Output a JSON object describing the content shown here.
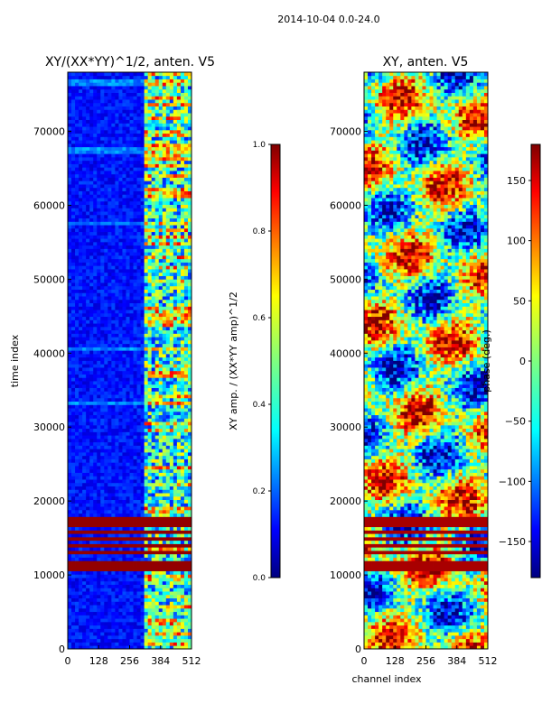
{
  "figure": {
    "suptitle": "2014-10-04 0.0-24.0"
  },
  "colors": {
    "jet": [
      "#00007f",
      "#0000ff",
      "#007fff",
      "#00ffff",
      "#7fff7f",
      "#ffff00",
      "#ff7f00",
      "#ff0000",
      "#7f0000"
    ],
    "background": "#ffffff",
    "axis": "#000000"
  },
  "chart_data": [
    {
      "type": "heatmap",
      "title": "XY/(XX*YY)^1/2, anten. V5",
      "xlabel": "",
      "ylabel": "time index",
      "xlim": [
        0,
        512
      ],
      "ylim": [
        0,
        78000
      ],
      "xticks": [
        0,
        128,
        256,
        384,
        512
      ],
      "yticks": [
        0,
        10000,
        20000,
        30000,
        40000,
        50000,
        60000,
        70000
      ],
      "colorbar": {
        "label": "XY amp. / (XX*YY amp)^1/2",
        "range": [
          0.0,
          1.0
        ],
        "ticks": [
          "0.0",
          "0.2",
          "0.4",
          "0.6",
          "0.8",
          "1.0"
        ]
      },
      "high_bands_time": [
        [
          10500,
          11800
        ],
        [
          12800,
          13200
        ],
        [
          13600,
          14100
        ],
        [
          14600,
          15000
        ],
        [
          15400,
          15900
        ],
        [
          16400,
          16800
        ],
        [
          17200,
          17700
        ]
      ],
      "active_channels": [
        320,
        512
      ]
    },
    {
      "type": "heatmap",
      "title": "XY, anten. V5",
      "xlabel": "channel index",
      "ylabel": "",
      "xlim": [
        0,
        512
      ],
      "ylim": [
        0,
        78000
      ],
      "xticks": [
        0,
        128,
        256,
        384,
        512
      ],
      "yticks": [
        0,
        10000,
        20000,
        30000,
        40000,
        50000,
        60000,
        70000
      ],
      "colorbar": {
        "label": "phase (deg.)",
        "range": [
          -180,
          180
        ],
        "ticks": [
          "−150",
          "−100",
          "−50",
          "0",
          "50",
          "100",
          "150"
        ]
      },
      "high_bands_time": [
        [
          10500,
          11800
        ],
        [
          12800,
          13200
        ],
        [
          13600,
          14100
        ],
        [
          14600,
          15000
        ],
        [
          15400,
          15900
        ],
        [
          16400,
          16800
        ],
        [
          17200,
          17700
        ]
      ]
    }
  ]
}
